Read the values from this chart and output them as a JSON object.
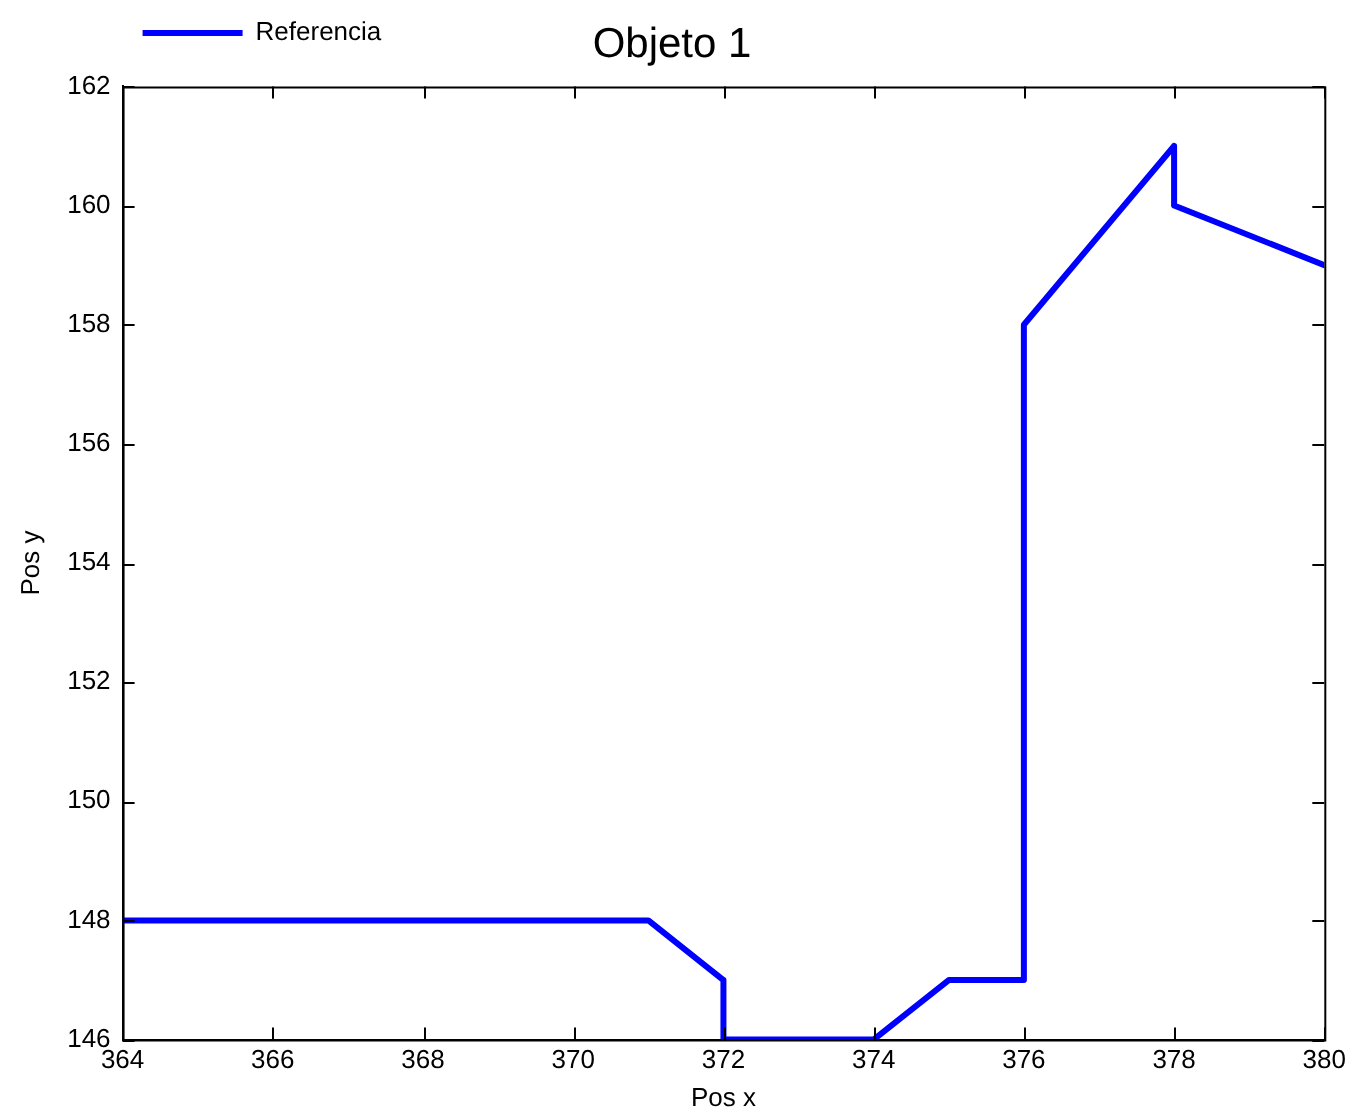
{
  "chart_data": {
    "type": "line",
    "title": "Objeto 1",
    "xlabel": "Pos x",
    "ylabel": "Pos y",
    "series": [
      {
        "name": "Referencia",
        "color": "#0000ff",
        "x": [
          364,
          371,
          372,
          372,
          374,
          375,
          376,
          376,
          378,
          378,
          380
        ],
        "values": [
          148,
          148,
          147,
          146,
          146,
          147,
          147,
          158,
          161,
          160,
          159
        ]
      }
    ],
    "xlim": [
      364,
      380
    ],
    "xticks": [
      364,
      366,
      368,
      370,
      372,
      374,
      376,
      378,
      380
    ],
    "ylim": [
      146,
      162
    ],
    "yticks": [
      146,
      148,
      150,
      152,
      154,
      156,
      158,
      160,
      162
    ],
    "grid": false,
    "legend": "top left",
    "marker": "none",
    "line_style": "solid"
  }
}
